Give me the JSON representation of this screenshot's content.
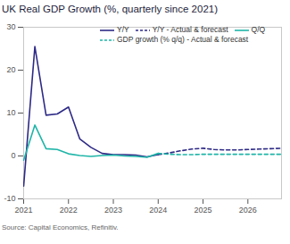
{
  "chart_data": {
    "type": "line",
    "title": "UK Real GDP Growth (%, quarterly since 2021)",
    "caption": "Source: Capital Economics, Refinitiv.",
    "x": [
      2021,
      2021.25,
      2021.5,
      2021.75,
      2022,
      2022.25,
      2022.5,
      2022.75,
      2023,
      2023.25,
      2023.5,
      2023.75,
      2024,
      2024.25,
      2024.5,
      2024.75,
      2025,
      2025.25,
      2025.5,
      2025.75,
      2026,
      2026.25,
      2026.5,
      2026.75
    ],
    "xlim": [
      2021,
      2026.75
    ],
    "xticks": [
      2021,
      2022,
      2023,
      2024,
      2025,
      2026
    ],
    "ylim": [
      -10,
      30
    ],
    "yticks": [
      -10,
      0,
      10,
      20,
      30
    ],
    "grid": false,
    "legend": "top-right",
    "series": [
      {
        "name": "Y/Y",
        "color": "#2e2a86",
        "line_style": "solid",
        "values": [
          -7,
          25.5,
          9.5,
          9.8,
          11.4,
          4.0,
          2.0,
          0.6,
          0.3,
          0.3,
          0.2,
          -0.2,
          0.3,
          null,
          null,
          null,
          null,
          null,
          null,
          null,
          null,
          null,
          null,
          null
        ]
      },
      {
        "name": "Y/Y - Actual & forecast",
        "color": "#2e2a86",
        "line_style": "dashed",
        "values": [
          null,
          null,
          null,
          null,
          null,
          null,
          null,
          null,
          null,
          null,
          null,
          null,
          0.3,
          0.7,
          1.2,
          1.6,
          1.8,
          1.5,
          1.4,
          1.4,
          1.5,
          1.6,
          1.7,
          1.8
        ]
      },
      {
        "name": "Q/Q",
        "color": "#1fb5a8",
        "line_style": "solid",
        "values": [
          -1.0,
          7.2,
          1.7,
          1.5,
          0.5,
          0.1,
          -0.1,
          0.1,
          0.2,
          0.0,
          -0.1,
          -0.3,
          0.6,
          null,
          null,
          null,
          null,
          null,
          null,
          null,
          null,
          null,
          null,
          null
        ]
      },
      {
        "name": "GDP growth (% q/q) - Actual & forecast",
        "color": "#1fb5a8",
        "line_style": "dashed",
        "values": [
          null,
          null,
          null,
          null,
          null,
          null,
          null,
          null,
          null,
          null,
          null,
          null,
          0.6,
          0.4,
          0.3,
          0.3,
          0.4,
          0.4,
          0.4,
          0.4,
          0.4,
          0.4,
          0.4,
          0.4
        ]
      }
    ]
  }
}
